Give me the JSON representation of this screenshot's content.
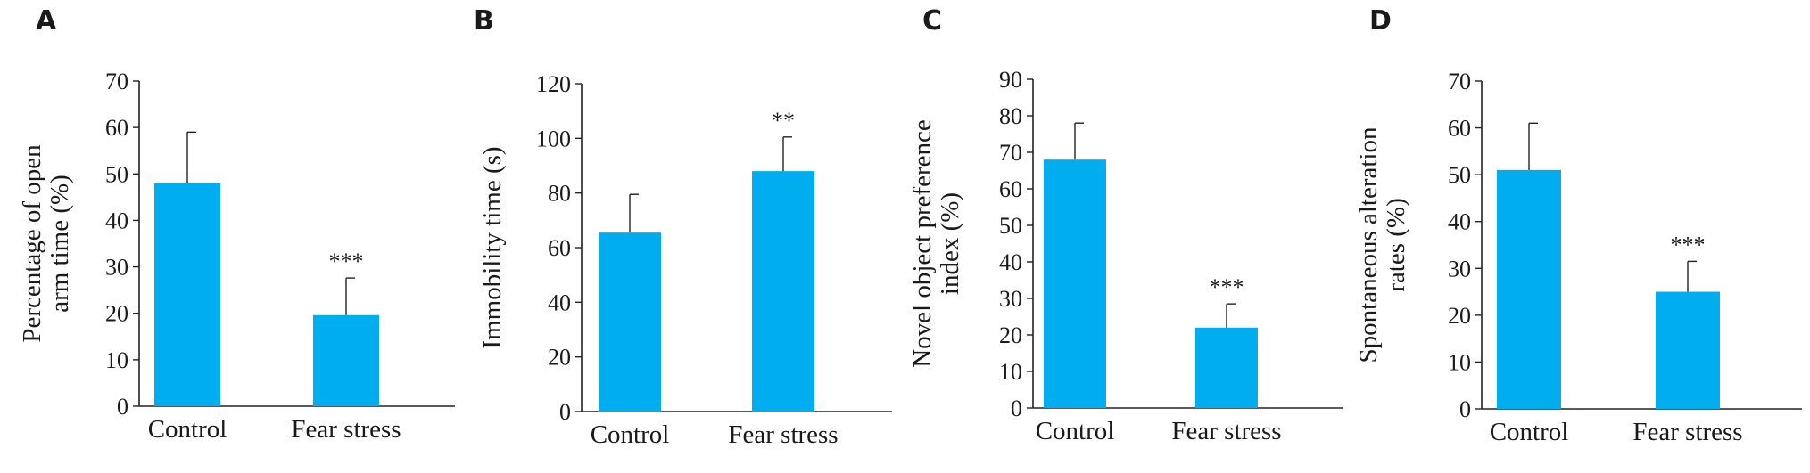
{
  "colors": {
    "bar": "#00AEEF",
    "axis": "#222222",
    "text": "#1a1a1a"
  },
  "chart_data": [
    {
      "panel": "A",
      "type": "bar",
      "categories": [
        "Control",
        "Fear stress"
      ],
      "values": [
        48,
        19.6
      ],
      "errors": [
        11,
        8
      ],
      "significance": [
        "",
        "***"
      ],
      "ylabel_lines": [
        "Percentage of open",
        "arm time (%)"
      ],
      "ylim": [
        0,
        70
      ],
      "yticks": [
        0,
        10,
        20,
        30,
        40,
        50,
        60,
        70
      ]
    },
    {
      "panel": "B",
      "type": "bar",
      "categories": [
        "Control",
        "Fear stress"
      ],
      "values": [
        65.5,
        88
      ],
      "errors": [
        14,
        12.5
      ],
      "significance": [
        "",
        "**"
      ],
      "ylabel_lines": [
        "Immobility time (s)"
      ],
      "ylim": [
        0,
        120
      ],
      "yticks": [
        0,
        20,
        40,
        60,
        80,
        100,
        120
      ]
    },
    {
      "panel": "C",
      "type": "bar",
      "categories": [
        "Control",
        "Fear stress"
      ],
      "values": [
        68,
        22
      ],
      "errors": [
        10,
        6.5
      ],
      "significance": [
        "",
        "***"
      ],
      "ylabel_lines": [
        "Novel object preference",
        "index (%)"
      ],
      "ylim": [
        0,
        90
      ],
      "yticks": [
        0,
        10,
        20,
        30,
        40,
        50,
        60,
        70,
        80,
        90
      ]
    },
    {
      "panel": "D",
      "type": "bar",
      "categories": [
        "Control",
        "Fear stress"
      ],
      "values": [
        51,
        25
      ],
      "errors": [
        10,
        6.5
      ],
      "significance": [
        "",
        "***"
      ],
      "ylabel_lines": [
        "Spontaneous alteration",
        "rates (%)"
      ],
      "ylim": [
        0,
        70
      ],
      "yticks": [
        0,
        10,
        20,
        30,
        40,
        50,
        60,
        70
      ]
    }
  ]
}
